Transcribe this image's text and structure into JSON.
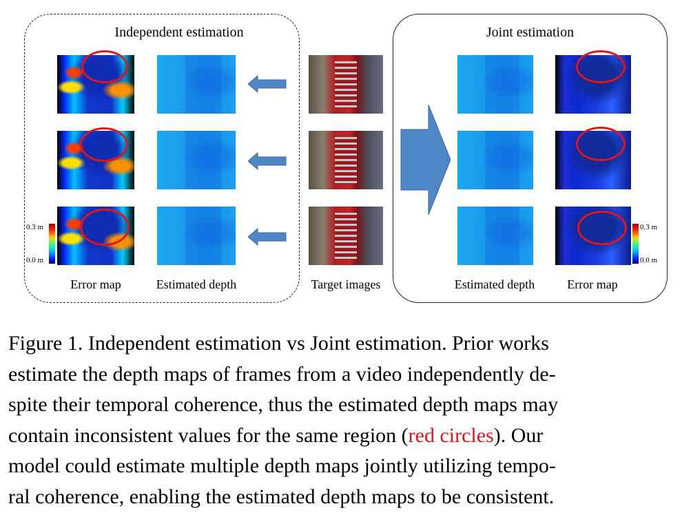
{
  "left_panel": {
    "title": "Independent estimation",
    "label_error_map": "Error map",
    "label_estimated_depth": "Estimated depth",
    "colorbar": {
      "max": "0.3 m",
      "min": "0.0 m"
    }
  },
  "center": {
    "label_target_images": "Target images"
  },
  "right_panel": {
    "title": "Joint estimation",
    "label_estimated_depth": "Estimated depth",
    "label_error_map": "Error map",
    "colorbar": {
      "max": "0.3 m",
      "min": "0.0 m"
    }
  },
  "colors": {
    "arrow": "#4f86c6",
    "circle": "#e0141c",
    "caption_highlight": "#e0141c"
  },
  "caption": {
    "line1": "Figure 1. Independent estimation vs Joint estimation. Prior works",
    "line2": "estimate the depth maps of frames from a video independently de-",
    "line3": "spite their temporal coherence, thus the estimated depth maps may",
    "line4_pre": "contain inconsistent values for the same region (",
    "line4_red": "red circles",
    "line4_post": ").  Our",
    "line5": "model could estimate multiple depth maps jointly utilizing tempo-",
    "line6": "ral coherence, enabling the estimated depth maps to be consistent."
  }
}
